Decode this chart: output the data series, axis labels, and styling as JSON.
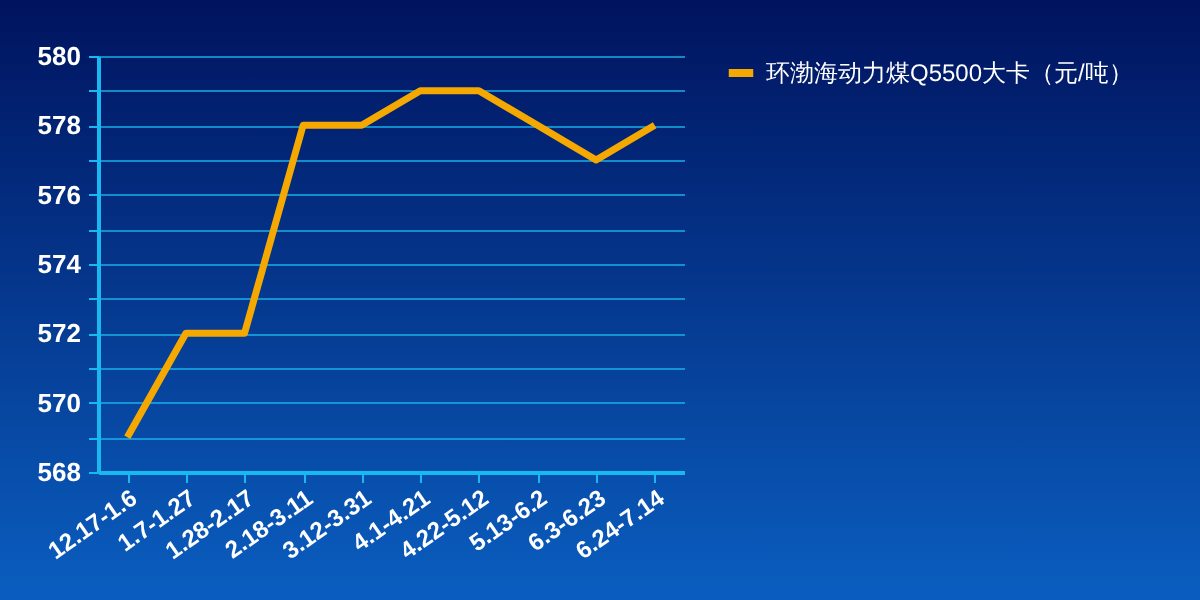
{
  "chart_data": {
    "type": "line",
    "categories": [
      "12.17-1.6",
      "1.7-1.27",
      "1.28-2.17",
      "2.18-3.11",
      "3.12-3.31",
      "4.1-4.21",
      "4.22-5.12",
      "5.13-6.2",
      "6.3-6.23",
      "6.24-7.14"
    ],
    "series": [
      {
        "name": "环渤海动力煤Q5500大卡（元/吨）",
        "color": "#f5a800",
        "values": [
          569,
          572,
          572,
          578,
          578,
          579,
          579,
          578,
          577,
          578
        ]
      }
    ],
    "ylim": [
      568,
      580
    ],
    "yticks": [
      568,
      {
        "value": 569,
        "label": null
      },
      570,
      {
        "value": 571,
        "label": null
      },
      572,
      {
        "value": 573,
        "label": null
      },
      574,
      {
        "value": 575,
        "label": null
      },
      576,
      {
        "value": 577,
        "label": null
      },
      578,
      {
        "value": 579,
        "label": null
      },
      580
    ],
    "grid": "y",
    "legend": "right",
    "marker": "none",
    "line_style": "solid"
  }
}
